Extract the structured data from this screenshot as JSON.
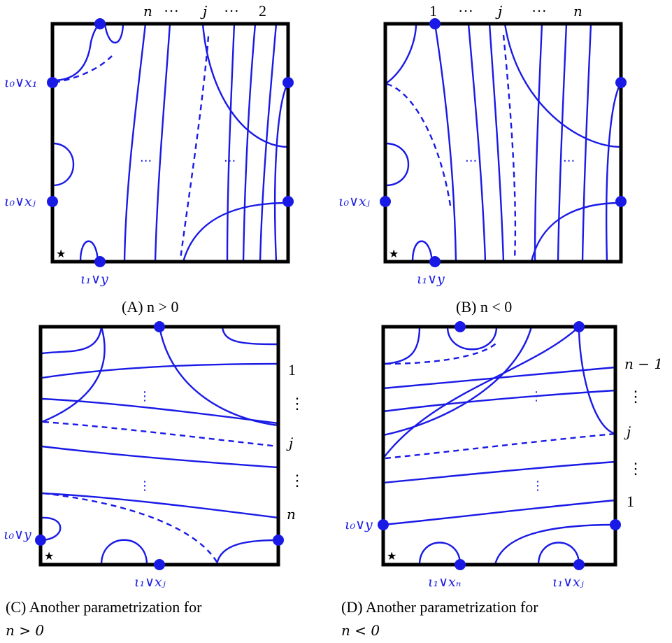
{
  "panel_a": {
    "caption": "(A) n > 0",
    "top_labels": [
      "n",
      "···",
      "j",
      "···",
      "2"
    ],
    "left_label_1": "ι₀∨x₁",
    "left_label_2": "ι₀∨xⱼ",
    "bottom_label": "ι₁∨y",
    "interior_dots": "···",
    "basepoint": "★"
  },
  "panel_b": {
    "caption": "(B) n < 0",
    "top_labels": [
      "1",
      "···",
      "j",
      "···",
      "n"
    ],
    "left_label": "ι₀∨xⱼ",
    "bottom_label": "ι₁∨y",
    "interior_dots": "···",
    "basepoint": "★"
  },
  "panel_c": {
    "caption_line1": "(C) Another parametrization for",
    "caption_line2": "n > 0",
    "right_labels": [
      "1",
      "⋮",
      "j",
      "⋮",
      "n"
    ],
    "left_label": "ι₀∨y",
    "bottom_label": "ι₁∨xⱼ",
    "interior_dots": "⋮",
    "basepoint": "★"
  },
  "panel_d": {
    "caption_line1": "(D) Another parametrization for",
    "caption_line2": "n < 0",
    "right_labels": [
      "n − 1",
      "⋮",
      "j",
      "⋮",
      "1"
    ],
    "left_label": "ι₀∨y",
    "bottom_label_1": "ι₁∨xₙ",
    "bottom_label_2": "ι₁∨xⱼ",
    "interior_dots": "⋮",
    "basepoint": "★"
  },
  "colors": {
    "curve": "#1a1ae6",
    "frame": "#000000"
  }
}
